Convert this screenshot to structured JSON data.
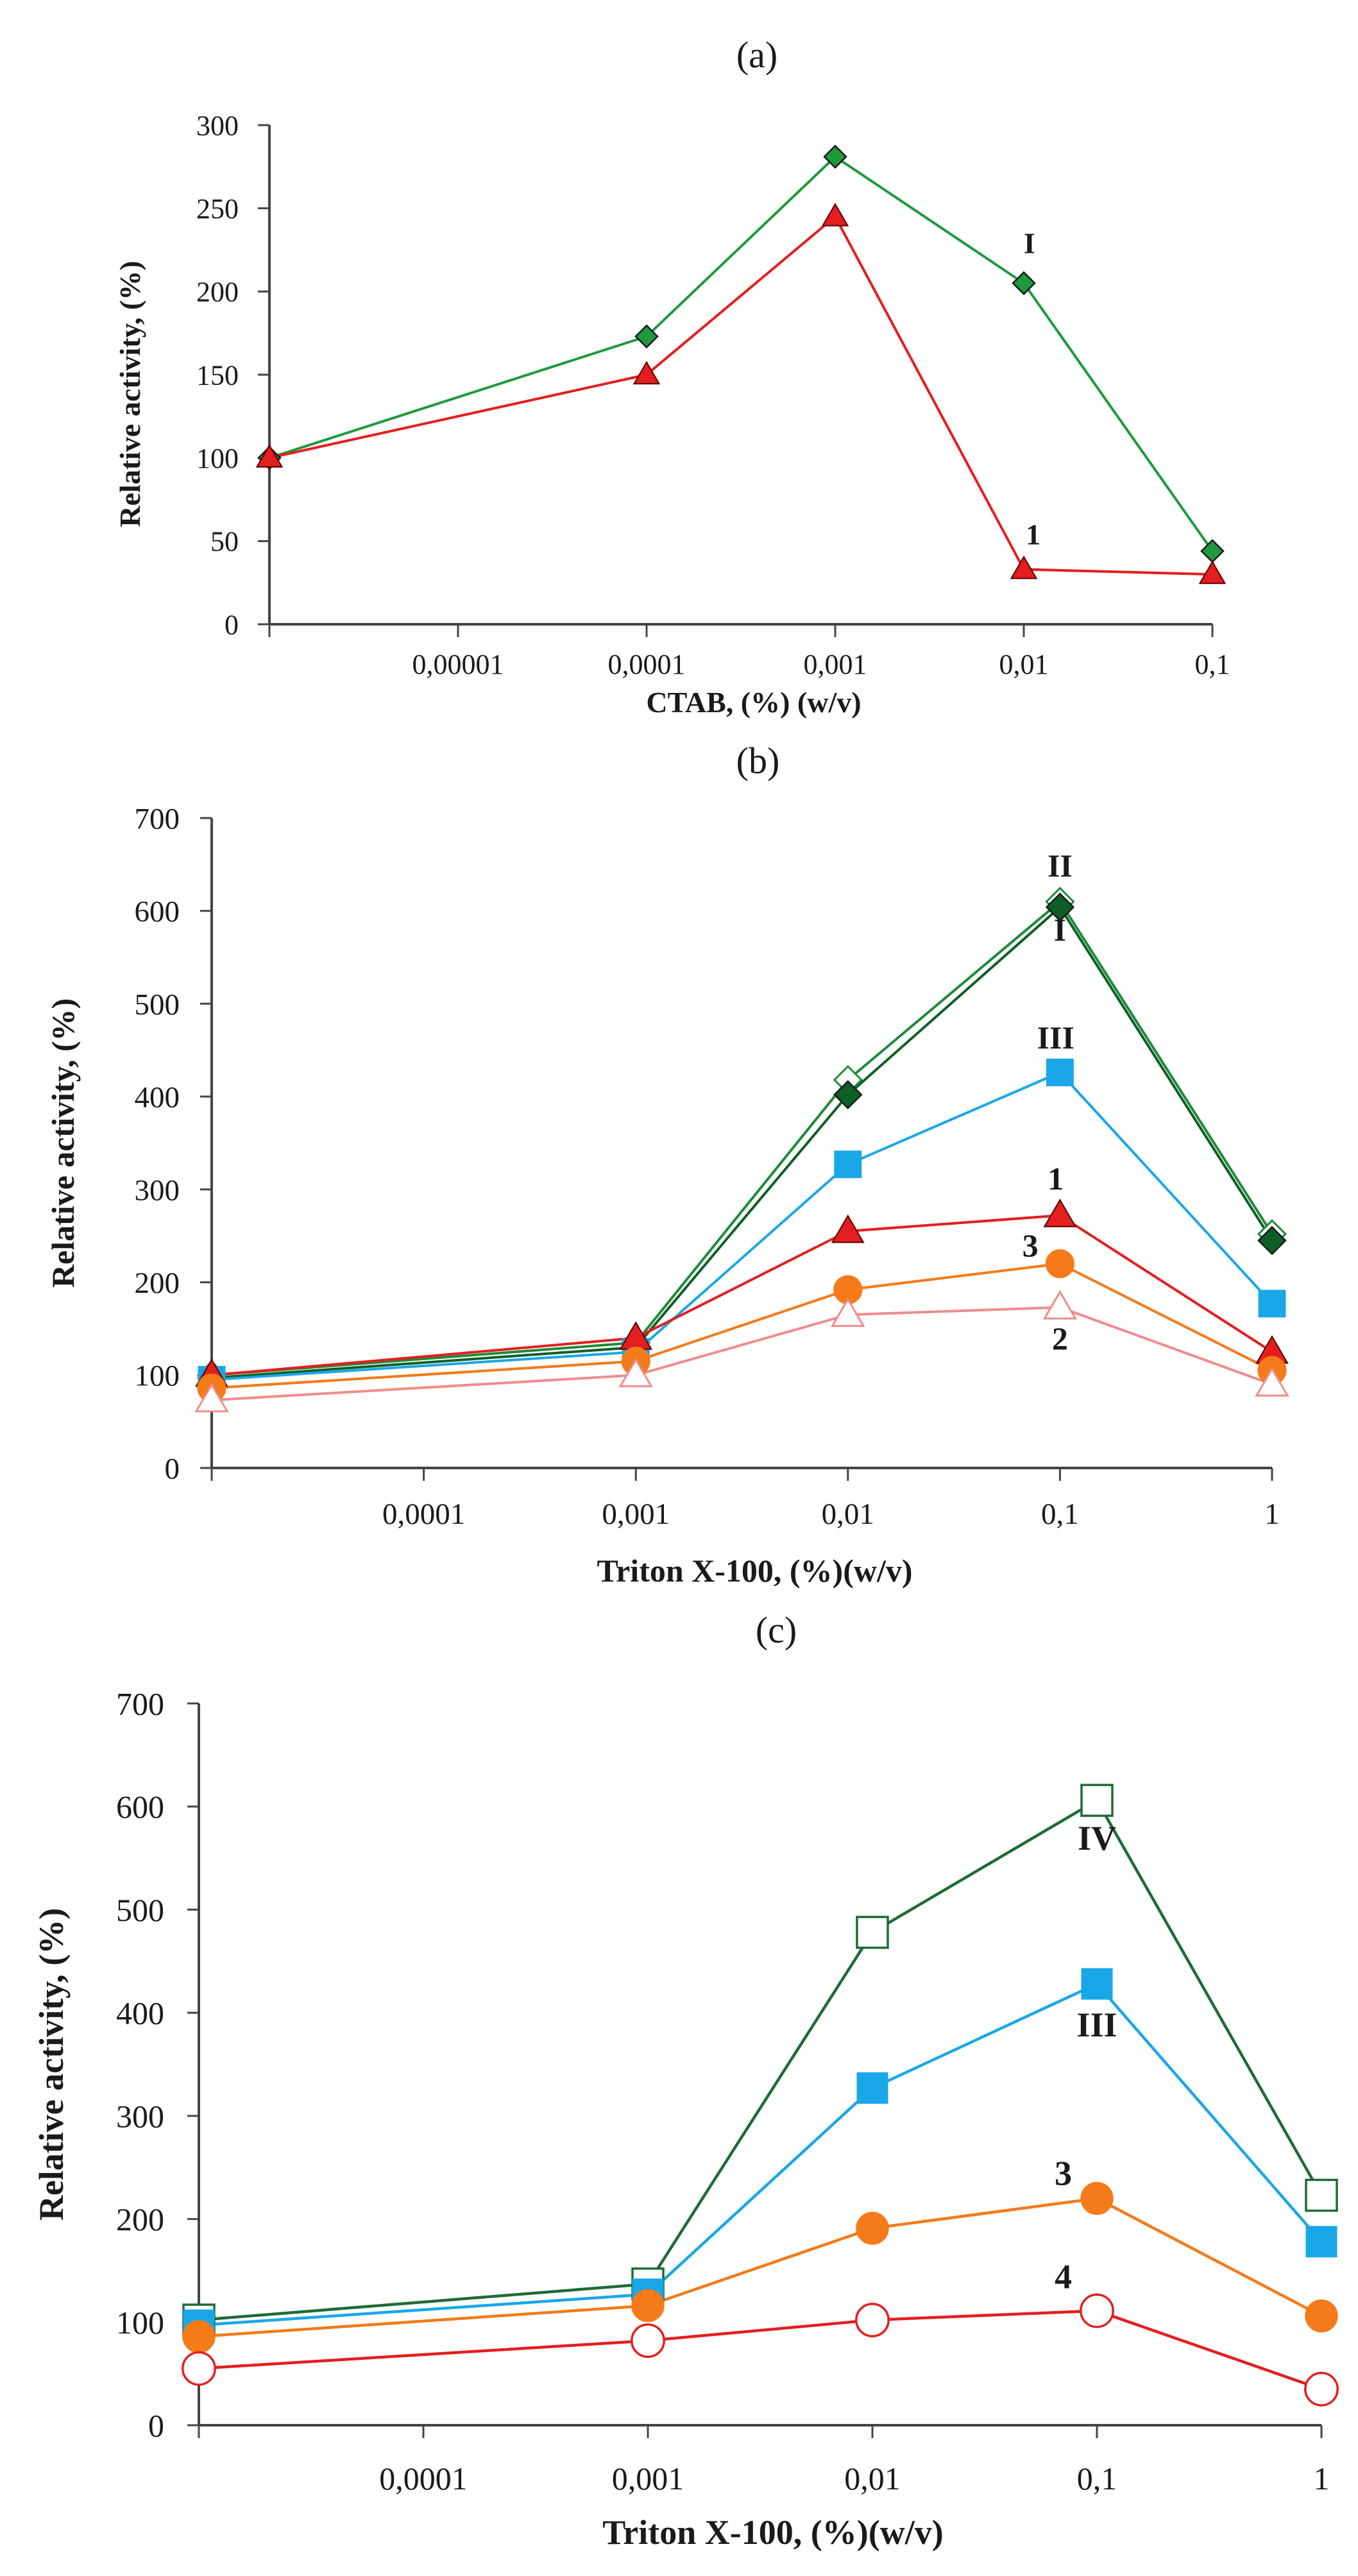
{
  "chart_data": [
    {
      "type": "line",
      "panel_label": "(a)",
      "title": "",
      "xlabel": "CTAB,  (%) (w/v)",
      "ylabel": "Relative activity, (%)",
      "x_scale": "log",
      "x_positions": [
        0,
        1,
        2,
        3,
        4,
        5
      ],
      "x_tick_labels": [
        "",
        "0,00001",
        "0,0001",
        "0,001",
        "0,01",
        "0,1"
      ],
      "ylim": [
        0,
        300
      ],
      "y_ticks": [
        0,
        50,
        100,
        150,
        200,
        250,
        300
      ],
      "series": [
        {
          "name": "I",
          "color": "#1e9a3c",
          "marker": "diamond",
          "filled": true,
          "x": [
            0,
            2,
            3,
            4,
            5
          ],
          "values": [
            100,
            173,
            281,
            205,
            44
          ]
        },
        {
          "name": "1",
          "color": "#e41e1e",
          "marker": "triangle",
          "filled": true,
          "x": [
            0,
            2,
            3,
            4,
            5
          ],
          "values": [
            100,
            150,
            245,
            33,
            30
          ]
        }
      ],
      "annotations": [
        {
          "text": "I",
          "x": 4.03,
          "y": 223
        },
        {
          "text": "1",
          "x": 4.05,
          "y": 48
        }
      ]
    },
    {
      "type": "line",
      "panel_label": "(b)",
      "title": "",
      "xlabel": "Triton X-100, (%)(w/v)",
      "ylabel": "Relative activity, (%)",
      "x_scale": "log",
      "x_positions": [
        0,
        1,
        2,
        3,
        4,
        5
      ],
      "x_tick_labels": [
        "",
        "0,0001",
        "0,001",
        "0,01",
        "0,1",
        "1"
      ],
      "ylim": [
        0,
        700
      ],
      "y_ticks": [
        0,
        100,
        200,
        300,
        400,
        500,
        600,
        700
      ],
      "series": [
        {
          "name": "II",
          "color": "#1e8a3a",
          "marker": "diamond",
          "filled": false,
          "x": [
            0,
            2,
            3,
            4,
            5
          ],
          "values": [
            100,
            135,
            418,
            610,
            252
          ]
        },
        {
          "name": "I",
          "color": "#0e5f26",
          "marker": "diamond",
          "filled": true,
          "x": [
            0,
            2,
            3,
            4,
            5
          ],
          "values": [
            97,
            130,
            402,
            604,
            245
          ]
        },
        {
          "name": "III",
          "color": "#1aa7e8",
          "marker": "square",
          "filled": true,
          "x": [
            0,
            2,
            3,
            4,
            5
          ],
          "values": [
            95,
            125,
            327,
            426,
            177
          ]
        },
        {
          "name": "1",
          "color": "#e41e1e",
          "marker": "triangle",
          "filled": true,
          "x": [
            0,
            2,
            3,
            4,
            5
          ],
          "values": [
            100,
            140,
            255,
            272,
            125
          ]
        },
        {
          "name": "3",
          "color": "#f47a1a",
          "marker": "circle",
          "filled": true,
          "x": [
            0,
            2,
            3,
            4,
            5
          ],
          "values": [
            86,
            115,
            192,
            220,
            105
          ]
        },
        {
          "name": "2",
          "color": "#f08c8c",
          "marker": "triangle",
          "filled": false,
          "x": [
            0,
            2,
            3,
            4,
            5
          ],
          "values": [
            73,
            100,
            165,
            173,
            90
          ]
        }
      ],
      "annotations": [
        {
          "text": "II",
          "x": 4.0,
          "y": 637
        },
        {
          "text": "I",
          "x": 4.0,
          "y": 568
        },
        {
          "text": "III",
          "x": 3.98,
          "y": 452
        },
        {
          "text": "1",
          "x": 3.98,
          "y": 300
        },
        {
          "text": "3",
          "x": 3.86,
          "y": 228
        },
        {
          "text": "2",
          "x": 4.0,
          "y": 128
        }
      ]
    },
    {
      "type": "line",
      "panel_label": "(c)",
      "title": "",
      "xlabel": "Triton X-100, (%)(w/v)",
      "ylabel": "Relative  activity, (%)",
      "x_scale": "log",
      "x_positions": [
        0,
        1,
        2,
        3,
        4,
        5
      ],
      "x_tick_labels": [
        "",
        "0,0001",
        "0,001",
        "0,01",
        "0,1",
        "1"
      ],
      "ylim": [
        0,
        700
      ],
      "y_ticks": [
        0,
        100,
        200,
        300,
        400,
        500,
        600,
        700
      ],
      "series": [
        {
          "name": "IV",
          "color": "#1e6b35",
          "marker": "square",
          "filled": false,
          "x": [
            0,
            2,
            3,
            4,
            5
          ],
          "values": [
            102,
            137,
            478,
            606,
            223
          ]
        },
        {
          "name": "III",
          "color": "#1aa7e8",
          "marker": "square",
          "filled": true,
          "x": [
            0,
            2,
            3,
            4,
            5
          ],
          "values": [
            97,
            127,
            327,
            428,
            178
          ]
        },
        {
          "name": "3",
          "color": "#f47a1a",
          "marker": "circle",
          "filled": true,
          "x": [
            0,
            2,
            3,
            4,
            5
          ],
          "values": [
            86,
            116,
            191,
            220,
            106
          ]
        },
        {
          "name": "4",
          "color": "#e41e1e",
          "marker": "circle",
          "filled": false,
          "x": [
            0,
            2,
            3,
            4,
            5
          ],
          "values": [
            55,
            82,
            102,
            111,
            35
          ]
        }
      ],
      "annotations": [
        {
          "text": "IV",
          "x": 4.0,
          "y": 558
        },
        {
          "text": "III",
          "x": 4.0,
          "y": 377
        },
        {
          "text": "3",
          "x": 3.85,
          "y": 233
        },
        {
          "text": "4",
          "x": 3.85,
          "y": 133
        }
      ]
    }
  ]
}
